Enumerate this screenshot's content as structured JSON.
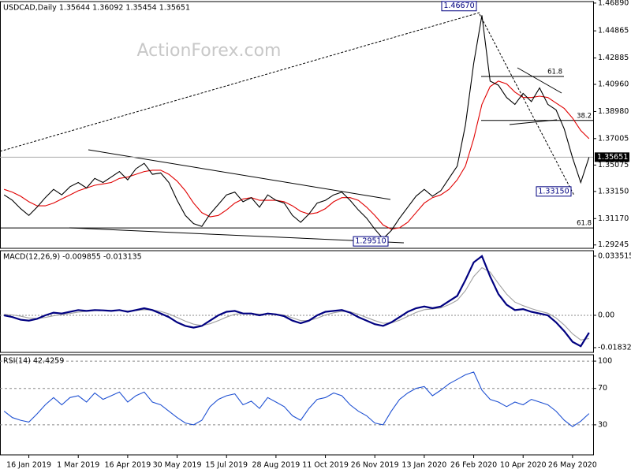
{
  "chart_data": [
    {
      "type": "line",
      "title": "USDCAD,Daily  1.35644 1.36092 1.35454 1.35651",
      "watermark": "ActionForex.com",
      "categories": [
        null,
        null,
        null,
        "16 Jan 2019",
        null,
        null,
        null,
        null,
        null,
        "1 Mar 2019",
        null,
        null,
        null,
        null,
        null,
        "16 Apr 2019",
        null,
        null,
        null,
        null,
        null,
        "30 May 2019",
        null,
        null,
        null,
        null,
        null,
        "15 Jul 2019",
        null,
        null,
        null,
        null,
        null,
        "28 Aug 2019",
        null,
        null,
        null,
        null,
        null,
        "11 Oct 2019",
        null,
        null,
        null,
        null,
        null,
        "26 Nov 2019",
        null,
        null,
        null,
        null,
        null,
        "13 Jan 2020",
        null,
        null,
        null,
        null,
        null,
        "26 Feb 2020",
        null,
        null,
        null,
        null,
        null,
        "10 Apr 2020",
        null,
        null,
        null,
        null,
        null,
        "26 May 2020",
        null,
        null
      ],
      "series": [
        {
          "color": "#000000",
          "values": [
            1.329,
            1.325,
            1.319,
            1.314,
            1.32,
            1.327,
            1.333,
            1.329,
            1.335,
            1.338,
            1.334,
            1.341,
            1.338,
            1.342,
            1.346,
            1.34,
            1.348,
            1.352,
            1.344,
            1.345,
            1.338,
            1.325,
            1.314,
            1.308,
            1.306,
            1.315,
            1.322,
            1.329,
            1.331,
            1.324,
            1.327,
            1.32,
            1.329,
            1.325,
            1.323,
            1.314,
            1.309,
            1.315,
            1.323,
            1.325,
            1.329,
            1.331,
            1.325,
            1.318,
            1.312,
            1.304,
            1.297,
            1.303,
            1.312,
            1.32,
            1.328,
            1.333,
            1.328,
            1.332,
            1.341,
            1.35,
            1.38,
            1.425,
            1.46,
            1.412,
            1.409,
            1.4,
            1.395,
            1.403,
            1.397,
            1.407,
            1.395,
            1.391,
            1.377,
            1.356,
            1.338,
            1.3565
          ]
        },
        {
          "color": "#e00000",
          "values": [
            1.333,
            1.331,
            1.328,
            1.324,
            1.321,
            1.321,
            1.323,
            1.326,
            1.329,
            1.332,
            1.334,
            1.336,
            1.337,
            1.338,
            1.341,
            1.342,
            1.344,
            1.346,
            1.347,
            1.347,
            1.344,
            1.339,
            1.332,
            1.323,
            1.316,
            1.313,
            1.314,
            1.318,
            1.323,
            1.326,
            1.327,
            1.325,
            1.325,
            1.325,
            1.324,
            1.321,
            1.317,
            1.315,
            1.316,
            1.319,
            1.324,
            1.327,
            1.327,
            1.325,
            1.32,
            1.314,
            1.307,
            1.304,
            1.305,
            1.309,
            1.316,
            1.323,
            1.327,
            1.329,
            1.333,
            1.34,
            1.35,
            1.37,
            1.395,
            1.408,
            1.412,
            1.41,
            1.404,
            1.4,
            1.4,
            1.401,
            1.4,
            1.396,
            1.392,
            1.385,
            1.376,
            1.37
          ]
        }
      ],
      "ylim": [
        1.29,
        1.47
      ],
      "yticks": [
        {
          "value": 1.4689,
          "label": "1.46890"
        },
        {
          "value": 1.44865,
          "label": "1.44865"
        },
        {
          "value": 1.42885,
          "label": "1.42885"
        },
        {
          "value": 1.4096,
          "label": "1.40960"
        },
        {
          "value": 1.3898,
          "label": "1.38980"
        },
        {
          "value": 1.37005,
          "label": "1.37005"
        },
        {
          "value": 1.35075,
          "label": "1.35075"
        },
        {
          "value": 1.3315,
          "label": "1.33150"
        },
        {
          "value": 1.3117,
          "label": "1.31170"
        },
        {
          "value": 1.29245,
          "label": "1.29245"
        }
      ],
      "last_price": {
        "value": 1.35651,
        "label": "1.35651"
      },
      "levels": [
        {
          "value": 1.4154,
          "label": "61.8"
        },
        {
          "value": 1.3833,
          "label": "38.2"
        },
        {
          "value": 1.3049,
          "label": "61.8"
        }
      ],
      "annotations": [
        {
          "value": 1.4667,
          "label": "1.46670"
        },
        {
          "value": 1.3315,
          "label": "1.33150"
        },
        {
          "value": 1.2951,
          "label": "1.29510"
        }
      ]
    },
    {
      "type": "line",
      "title": "MACD(12,26,9) -0.009855 -0.013135",
      "series": [
        {
          "color": "#000080",
          "values": [
            0,
            -0.001,
            -0.0025,
            -0.003,
            -0.002,
            0,
            0.0015,
            0.001,
            0.002,
            0.003,
            0.0025,
            0.003,
            0.0028,
            0.0025,
            0.003,
            0.002,
            0.003,
            0.004,
            0.003,
            0.001,
            -0.001,
            -0.004,
            -0.006,
            -0.007,
            -0.006,
            -0.003,
            0,
            0.002,
            0.0025,
            0.001,
            0.001,
            0,
            0.001,
            0.0005,
            -0.0005,
            -0.003,
            -0.0045,
            -0.003,
            0,
            0.002,
            0.0025,
            0.003,
            0.0015,
            -0.001,
            -0.003,
            -0.005,
            -0.006,
            -0.004,
            -0.001,
            0.002,
            0.004,
            0.005,
            0.004,
            0.005,
            0.008,
            0.011,
            0.02,
            0.03,
            0.0335,
            0.022,
            0.012,
            0.006,
            0.003,
            0.0035,
            0.002,
            0.001,
            0,
            -0.004,
            -0.009,
            -0.015,
            -0.0175,
            -0.009855
          ]
        },
        {
          "color": "#a0a0a0",
          "values": [
            0.0005,
            0.0002,
            -0.0005,
            -0.0015,
            -0.0018,
            -0.0012,
            -0.0003,
            0.0004,
            0.001,
            0.0018,
            0.0022,
            0.0026,
            0.0027,
            0.0026,
            0.0028,
            0.0025,
            0.0027,
            0.0032,
            0.0031,
            0.0022,
            0.0008,
            -0.0012,
            -0.0033,
            -0.005,
            -0.0058,
            -0.0048,
            -0.003,
            -0.001,
            0.0006,
            0.001,
            0.001,
            0.0006,
            0.0008,
            0.0006,
            0.0001,
            -0.0014,
            -0.003,
            -0.003,
            -0.0016,
            0.0002,
            0.0014,
            0.0022,
            0.002,
            0.0006,
            -0.0012,
            -0.003,
            -0.0045,
            -0.0043,
            -0.0028,
            -0.0006,
            0.0016,
            0.0032,
            0.0036,
            0.0042,
            0.006,
            0.0085,
            0.014,
            0.022,
            0.027,
            0.0245,
            0.018,
            0.012,
            0.0075,
            0.0055,
            0.0038,
            0.0024,
            0.0012,
            -0.0015,
            -0.0055,
            -0.0105,
            -0.014,
            -0.013135
          ]
        }
      ],
      "ylim": [
        -0.021,
        0.0366
      ],
      "yticks": [
        0.033515,
        {
          "value": 0,
          "label": "0.00"
        },
        -0.018324
      ]
    },
    {
      "type": "line",
      "title": "RSI(14) 42.4259",
      "series": [
        {
          "color": "#1e50d2",
          "values": [
            45,
            38,
            35,
            33,
            42,
            52,
            60,
            52,
            60,
            62,
            55,
            65,
            58,
            62,
            66,
            55,
            62,
            66,
            55,
            52,
            45,
            38,
            32,
            30,
            35,
            50,
            58,
            62,
            64,
            52,
            56,
            48,
            60,
            55,
            50,
            40,
            35,
            48,
            58,
            60,
            65,
            62,
            52,
            45,
            40,
            32,
            30,
            45,
            58,
            65,
            70,
            72,
            62,
            68,
            75,
            80,
            85,
            88,
            68,
            58,
            55,
            50,
            55,
            52,
            58,
            55,
            52,
            45,
            35,
            28,
            34,
            42.4259
          ]
        }
      ],
      "ylim": [
        -3,
        107
      ],
      "yticks": [
        100,
        70,
        30
      ],
      "grid": true
    }
  ]
}
